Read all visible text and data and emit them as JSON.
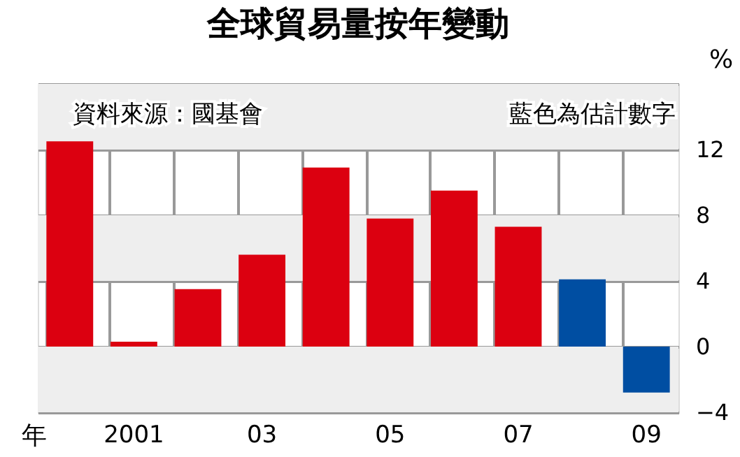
{
  "chart_data": {
    "type": "bar",
    "title": "全球貿易量按年變動",
    "categories": [
      null,
      "2001",
      null,
      "03",
      null,
      "05",
      null,
      "07",
      null,
      "09"
    ],
    "values": [
      12.5,
      0.3,
      3.5,
      5.6,
      10.9,
      7.8,
      9.5,
      7.3,
      4.1,
      -2.8
    ],
    "colors": [
      "#dc0010",
      "#dc0010",
      "#dc0010",
      "#dc0010",
      "#dc0010",
      "#dc0010",
      "#dc0010",
      "#dc0010",
      "#004ea2",
      "#004ea2"
    ],
    "xlabel": "年",
    "ylabel": "%",
    "ylim": [
      -4,
      16
    ],
    "yticks": [
      -4,
      0,
      4,
      8,
      12,
      {
        "value": 16,
        "label": null
      }
    ],
    "grid": true,
    "bands": [
      {
        "axis": "y",
        "from": -4,
        "to": 0,
        "color": "#eeeeee"
      },
      {
        "axis": "y",
        "from": 4,
        "to": 8,
        "color": "#eeeeee"
      },
      {
        "axis": "y",
        "from": 12,
        "to": 16,
        "color": "#eeeeee"
      }
    ],
    "annotations": [
      "資料來源：國基會",
      "藍色為估計數字"
    ]
  }
}
